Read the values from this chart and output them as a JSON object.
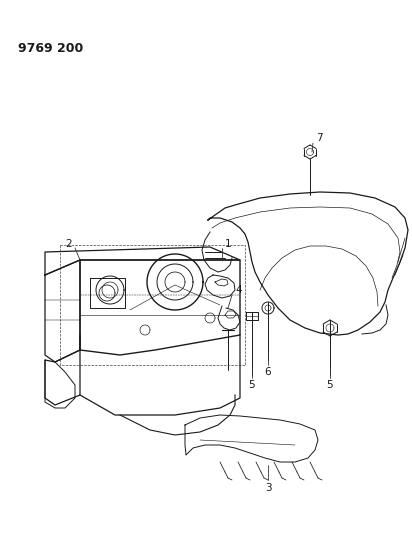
{
  "title": "9769 200",
  "background_color": "#ffffff",
  "line_color": "#1a1a1a",
  "title_fontsize": 9,
  "fig_width": 4.12,
  "fig_height": 5.33,
  "dpi": 100
}
